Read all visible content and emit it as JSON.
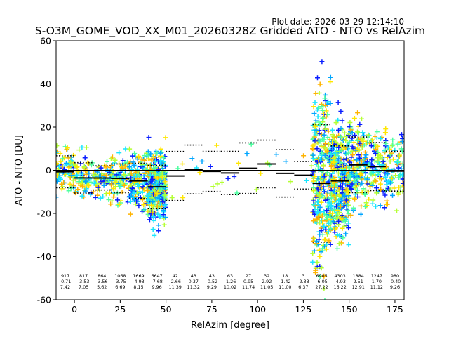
{
  "chart_data": {
    "type": "scatter",
    "title": "S-O3M_GOME_VOD_XX_M01_20260328Z Gridded ATO - NTO vs RelAzim",
    "plot_date": "Plot date: 2026-03-29 12:14:10",
    "xlabel": "RelAzim [degree]",
    "ylabel": "ATO - NTO [DU]",
    "xlim": [
      -10,
      180
    ],
    "ylim": [
      -60,
      60
    ],
    "xticks": [
      0,
      25,
      50,
      75,
      100,
      125,
      150,
      175
    ],
    "yticks": [
      -60,
      -40,
      -20,
      0,
      20,
      40,
      60
    ],
    "colors": [
      "#0a1eff",
      "#00a6ff",
      "#19e6ff",
      "#4dffa0",
      "#b3ff33",
      "#ffe600",
      "#ffb300"
    ],
    "bins": [
      {
        "center": -5,
        "count": "917",
        "mean": "-0.71",
        "std": "7.42"
      },
      {
        "center": 5,
        "count": "817",
        "mean": "-3.53",
        "std": "7.05"
      },
      {
        "center": 15,
        "count": "864",
        "mean": "-3.56",
        "std": "5.62"
      },
      {
        "center": 25,
        "count": "1068",
        "mean": "-3.75",
        "std": "6.69"
      },
      {
        "center": 35,
        "count": "1669",
        "mean": "-4.93",
        "std": "8.15"
      },
      {
        "center": 45,
        "count": "6647",
        "mean": "-7.68",
        "std": "9.96"
      },
      {
        "center": 55,
        "count": "42",
        "mean": "-2.66",
        "std": "11.39"
      },
      {
        "center": 65,
        "count": "43",
        "mean": "0.37",
        "std": "11.32"
      },
      {
        "center": 75,
        "count": "43",
        "mean": "-0.52",
        "std": "9.29"
      },
      {
        "center": 85,
        "count": "63",
        "mean": "-1.26",
        "std": "10.02"
      },
      {
        "center": 95,
        "count": "27",
        "mean": "0.95",
        "std": "11.74"
      },
      {
        "center": 105,
        "count": "32",
        "mean": "2.92",
        "std": "11.05"
      },
      {
        "center": 115,
        "count": "18",
        "mean": "-1.42",
        "std": "11.00"
      },
      {
        "center": 125,
        "count": "3",
        "mean": "-2.33",
        "std": "6.37"
      },
      {
        "center": 135,
        "count": "6905",
        "mean": "-6.05",
        "std": "27.22"
      },
      {
        "center": 145,
        "count": "4303",
        "mean": "-4.93",
        "std": "16.22"
      },
      {
        "center": 155,
        "count": "1884",
        "mean": "2.51",
        "std": "12.91"
      },
      {
        "center": 165,
        "count": "1247",
        "mean": "1.70",
        "std": "11.12"
      },
      {
        "center": 175,
        "count": "980",
        "mean": "-0.40",
        "std": "9.26"
      }
    ]
  }
}
